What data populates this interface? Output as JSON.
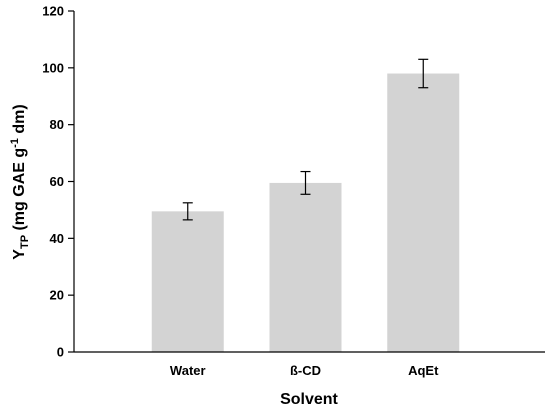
{
  "chart_data": {
    "type": "bar",
    "categories": [
      "Water",
      "ß-CD",
      "AqEt"
    ],
    "values": [
      49.5,
      59.5,
      98
    ],
    "errors": [
      3,
      4,
      5
    ],
    "bar_color": "#d3d3d3",
    "xlabel": "Solvent",
    "ylabel": {
      "main": "Y",
      "sub": "TP",
      "unit_start": " (mg GAE g",
      "sup": "-1",
      "unit_end": " dm)"
    },
    "ylim": [
      0,
      120
    ],
    "yticks": [
      0,
      20,
      40,
      60,
      80,
      100,
      120
    ],
    "grid": false,
    "legend": "none"
  }
}
